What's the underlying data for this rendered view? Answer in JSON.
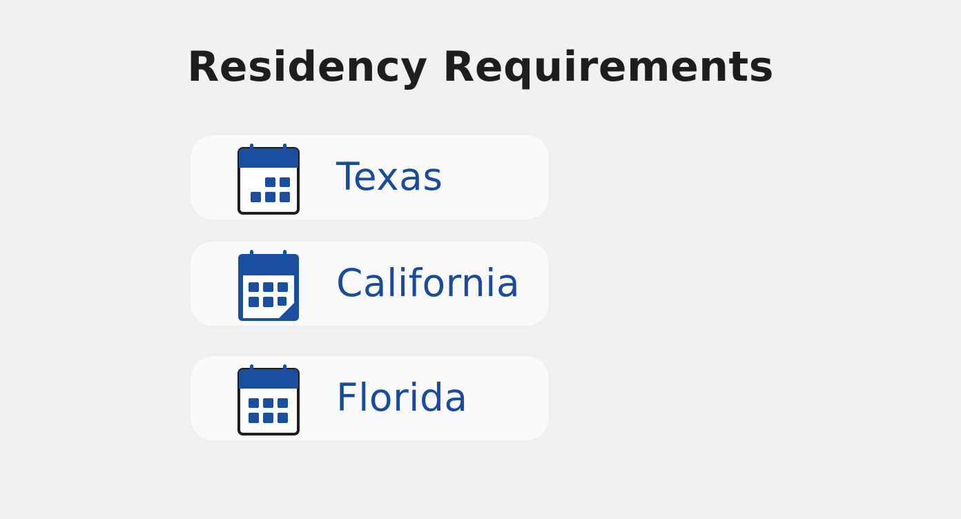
{
  "title": "Residency Requirements",
  "accent_color": "#1a4fa0",
  "items": [
    {
      "label": "Texas",
      "icon": "calendar-icon"
    },
    {
      "label": "California",
      "icon": "calendar-icon"
    },
    {
      "label": "Florida",
      "icon": "calendar-icon"
    }
  ]
}
